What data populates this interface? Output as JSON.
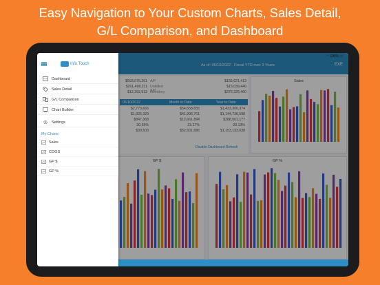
{
  "headline": {
    "line1": "Easy Navigation to Your Custom Charts, Sales Detail,",
    "line2": "G/L Comparison, and Dashboard"
  },
  "status_bar": {
    "battery": "100%"
  },
  "topbar": {
    "dates": "As of: 05/10/2022 - Fiscal YTD over 3 Years",
    "action": "EXE"
  },
  "drawer": {
    "app_name": "Info Touch",
    "menu": [
      {
        "label": "Dashboard",
        "icon": "dashboard-icon"
      },
      {
        "label": "Sales Detail",
        "icon": "tag-icon"
      },
      {
        "label": "G/L Comparison",
        "icon": "compare-icon"
      },
      {
        "label": "Chart Builder",
        "icon": "chart-builder-icon"
      },
      {
        "label": "Settings",
        "icon": "gear-icon"
      }
    ],
    "section_title": "My Charts",
    "charts": [
      {
        "label": "Sales"
      },
      {
        "label": "COGS"
      },
      {
        "label": "GP $"
      },
      {
        "label": "GP %"
      }
    ]
  },
  "summary": {
    "rows": [
      {
        "value": "$593,075,261",
        "label": "A/P",
        "right": "$155,621,413"
      },
      {
        "value": "$251,498,211",
        "label": "Unbilled A/P",
        "right": "$15,039,440"
      },
      {
        "value": "$12,392,913",
        "label": "Inventory",
        "right": "$376,326,460"
      }
    ],
    "table_head": [
      "05/10/2022",
      "Month to Date",
      "Year to Date"
    ],
    "table_rows": [
      [
        "$2,773,666",
        "$54,658,655",
        "$1,433,300,374"
      ],
      [
        "$1,925,329",
        "$41,996,761",
        "$1,144,736,598"
      ],
      [
        "$847,368",
        "$12,661,894",
        "$288,561,177"
      ],
      [
        "30.55%",
        "23.17%",
        "20.13%"
      ],
      [
        "$30,503",
        "$52,501,686",
        "$1,153,133,638"
      ]
    ],
    "link": "Disable Dashboard Refresh"
  },
  "charts": {
    "sales_title": "Sales",
    "gp_title": "GP $",
    "gpp_title": "GP %"
  },
  "colors": {
    "background": "#F57F2A",
    "accent": "#2d8fc6",
    "series": [
      "#e03b3b",
      "#3b5fd6",
      "#7ac142",
      "#f28c28",
      "#8b3fb0"
    ]
  }
}
